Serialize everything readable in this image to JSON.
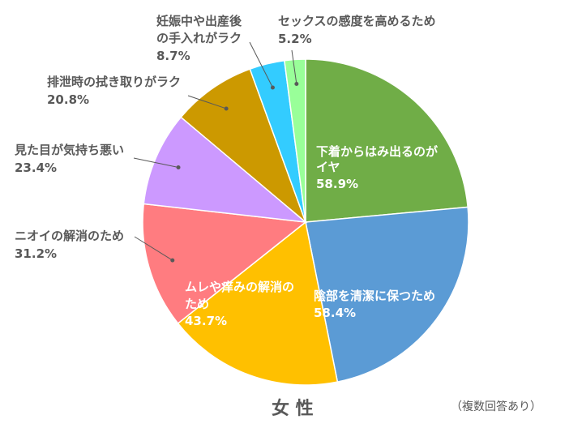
{
  "chart_data": {
    "type": "pie",
    "title": "女 性",
    "note": "（複数回答あり）",
    "slices": [
      {
        "label": "下着からはみ出るのがイヤ",
        "value": 58.9,
        "value_label": "58.9%",
        "color": "#70AD47"
      },
      {
        "label": "陰部を清潔に保つため",
        "value": 58.4,
        "value_label": "58.4%",
        "color": "#5B9BD5"
      },
      {
        "label": "ムレや痒みの解消のため",
        "value": 43.7,
        "value_label": "43.7%",
        "color": "#FFC000"
      },
      {
        "label": "ニオイの解消のため",
        "value": 31.2,
        "value_label": "31.2%",
        "color": "#FF7C80"
      },
      {
        "label": "見た目が気持ち悪い",
        "value": 23.4,
        "value_label": "23.4%",
        "color": "#CC99FF"
      },
      {
        "label": "排泄時の拭き取りがラク",
        "value": 20.8,
        "value_label": "20.8%",
        "color": "#CC9900"
      },
      {
        "label": "妊娠中や出産後の手入れがラク",
        "value": 8.7,
        "value_label": "8.7%",
        "color": "#33CCFF"
      },
      {
        "label": "セックスの感度を高めるため",
        "value": 5.2,
        "value_label": "5.2%",
        "color": "#99FF99"
      }
    ]
  }
}
